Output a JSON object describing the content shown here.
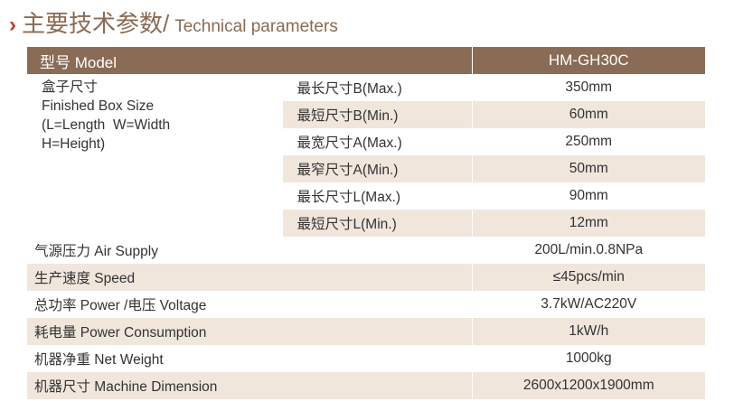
{
  "title": {
    "chinese": "主要技术参数/",
    "english": "Technical parameters"
  },
  "header": {
    "label": "型号 Model",
    "value": "HM-GH30C"
  },
  "box_size": {
    "line1": "盒子尺寸",
    "line2": "Finished Box Size",
    "line3": "(L=Length  W=Width",
    "line4": "H=Height)",
    "rows": [
      {
        "label": "最长尺寸B(Max.)",
        "value": "350mm"
      },
      {
        "label": "最短尺寸B(Min.)",
        "value": "60mm"
      },
      {
        "label": "最宽尺寸A(Max.)",
        "value": "250mm"
      },
      {
        "label": "最窄尺寸A(Min.)",
        "value": "50mm"
      },
      {
        "label": "最长尺寸L(Max.)",
        "value": "90mm"
      },
      {
        "label": "最短尺寸L(Min.)",
        "value": "12mm"
      }
    ]
  },
  "specs": [
    {
      "label": "气源压力 Air Supply",
      "value": "200L/min.0.8NPa"
    },
    {
      "label": "生产速度 Speed",
      "value": "≤45pcs/min"
    },
    {
      "label": "总功率 Power /电压 Voltage",
      "value": "3.7kW/AC220V"
    },
    {
      "label": "耗电量 Power Consumption",
      "value": "1kW/h"
    },
    {
      "label": "机器净重 Net Weight",
      "value": "1000kg"
    },
    {
      "label": "机器尺寸 Machine Dimension",
      "value": "2600x1200x1900mm"
    }
  ],
  "colors": {
    "header_bg": "#8a6b56",
    "stripe_bg": "#f1e6dc",
    "accent": "#c0392b",
    "title_text": "#8a6a52"
  }
}
